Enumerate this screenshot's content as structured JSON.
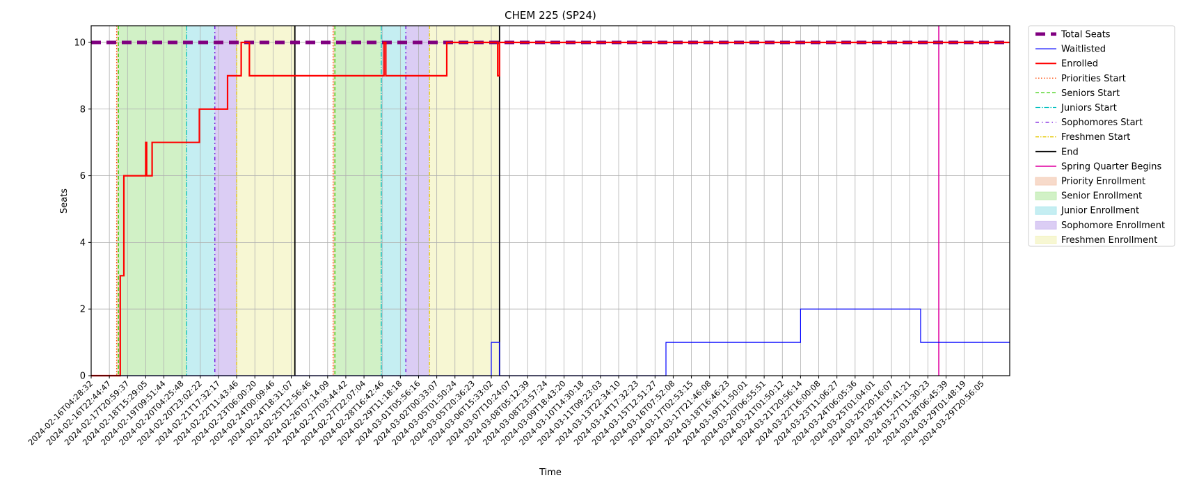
{
  "chart_data": {
    "type": "line",
    "title": "CHEM 225 (SP24)",
    "xlabel": "Time",
    "ylabel": "Seats",
    "ylim": [
      0,
      10.5
    ],
    "yticks": [
      0,
      2,
      4,
      6,
      8,
      10
    ],
    "grid": true,
    "legend_position": "outside-right",
    "xlim": [
      "2024-02-16T04:28:32",
      "2024-03-31T00:00:00"
    ],
    "xtick_labels": [
      "2024-02-16T04:28:32",
      "2024-02-16T22:44:47",
      "2024-02-17T20:59:37",
      "2024-02-18T15:29:05",
      "2024-02-19T09:51:44",
      "2024-02-20T04:25:48",
      "2024-02-20T23:02:22",
      "2024-02-21T17:32:17",
      "2024-02-22T11:43:46",
      "2024-02-23T06:00:20",
      "2024-02-24T00:09:46",
      "2024-02-24T18:31:07",
      "2024-02-25T12:56:46",
      "2024-02-26T07:14:09",
      "2024-02-27T03:44:42",
      "2024-02-27T22:07:04",
      "2024-02-28T16:42:46",
      "2024-02-29T11:18:18",
      "2024-03-01T05:56:16",
      "2024-03-02T00:33:07",
      "2024-03-05T01:50:24",
      "2024-03-05T20:36:23",
      "2024-03-06T15:33:02",
      "2024-03-07T10:24:07",
      "2024-03-08T05:12:39",
      "2024-03-08T23:57:24",
      "2024-03-09T18:43:20",
      "2024-03-10T14:30:18",
      "2024-03-11T09:23:03",
      "2024-03-13T22:34:10",
      "2024-03-14T17:32:23",
      "2024-03-15T12:51:27",
      "2024-03-16T07:52:08",
      "2024-03-17T02:53:15",
      "2024-03-17T21:46:08",
      "2024-03-18T16:46:23",
      "2024-03-19T11:50:01",
      "2024-03-20T06:55:51",
      "2024-03-21T01:50:12",
      "2024-03-21T20:56:14",
      "2024-03-22T16:00:08",
      "2024-03-23T11:06:27",
      "2024-03-24T06:05:36",
      "2024-03-25T01:04:01",
      "2024-03-25T20:16:07",
      "2024-03-26T15:41:21",
      "2024-03-27T11:30:23",
      "2024-03-28T06:45:39",
      "2024-03-29T01:48:19",
      "2024-03-29T20:56:05"
    ],
    "shaded_periods": [
      {
        "name": "Priority Enrollment",
        "color": "#f4cdb8",
        "ranges": [
          [
            1.4,
            1.5
          ],
          [
            13.3,
            13.4
          ]
        ]
      },
      {
        "name": "Senior Enrollment",
        "color": "#c1ecb3",
        "ranges": [
          [
            1.5,
            5.25
          ],
          [
            13.4,
            15.95
          ]
        ]
      },
      {
        "name": "Junior Enrollment",
        "color": "#b1e8ee",
        "ranges": [
          [
            5.25,
            6.8
          ],
          [
            15.95,
            17.3
          ]
        ]
      },
      {
        "name": "Sophomore Enrollment",
        "color": "#cfbcf0",
        "ranges": [
          [
            6.8,
            8.0
          ],
          [
            17.3,
            18.6
          ]
        ]
      },
      {
        "name": "Freshmen Enrollment",
        "color": "#f4f4c4",
        "ranges": [
          [
            8.0,
            11.2
          ],
          [
            18.6,
            22.4
          ]
        ]
      }
    ],
    "vertical_markers": [
      {
        "name": "Priorities Start",
        "color": "#ff4500",
        "dash": "1.5,2.5",
        "width": 1.3,
        "at": [
          1.4,
          13.3
        ]
      },
      {
        "name": "Seniors Start",
        "color": "#33cc00",
        "dash": "5,3",
        "width": 1.3,
        "at": [
          1.5,
          13.4
        ]
      },
      {
        "name": "Juniors Start",
        "color": "#00bfbf",
        "dash": "7,2,1.5,2",
        "width": 1.3,
        "at": [
          5.25,
          15.95
        ]
      },
      {
        "name": "Sophomores Start",
        "color": "#6a00d9",
        "dash": "5,4,1.5,4",
        "width": 1.3,
        "at": [
          6.8,
          17.3
        ]
      },
      {
        "name": "Freshmen Start",
        "color": "#e6c800",
        "dash": "5,2,1.5,2",
        "width": 1.3,
        "at": [
          8.0,
          18.6
        ]
      },
      {
        "name": "End",
        "color": "#000000",
        "dash": "",
        "width": 1.8,
        "at": [
          11.2,
          22.45
        ]
      },
      {
        "name": "Spring Quarter Begins",
        "color": "#e000a0",
        "dash": "",
        "width": 1.6,
        "at": [
          46.6
        ]
      }
    ],
    "series": [
      {
        "name": "Total Seats",
        "color": "#800080",
        "width": 5,
        "dash": "14,8",
        "points": [
          [
            0,
            10
          ],
          [
            50.5,
            10
          ]
        ]
      },
      {
        "name": "Waitlisted",
        "color": "#0000ff",
        "width": 1.2,
        "dash": "",
        "points": [
          [
            0,
            0
          ],
          [
            22.0,
            0
          ],
          [
            22.0,
            1
          ],
          [
            22.45,
            1
          ],
          [
            22.45,
            0
          ],
          [
            31.6,
            0
          ],
          [
            31.6,
            1
          ],
          [
            39.0,
            1
          ],
          [
            39.0,
            2
          ],
          [
            45.6,
            2
          ],
          [
            45.6,
            1
          ],
          [
            50.5,
            1
          ]
        ]
      },
      {
        "name": "Enrolled",
        "color": "#ff0000",
        "width": 2.2,
        "dash": "",
        "points": [
          [
            0,
            0
          ],
          [
            1.6,
            0
          ],
          [
            1.6,
            3
          ],
          [
            1.8,
            3
          ],
          [
            1.8,
            6
          ],
          [
            3.0,
            6
          ],
          [
            3.0,
            7
          ],
          [
            3.05,
            7
          ],
          [
            3.05,
            6
          ],
          [
            3.35,
            6
          ],
          [
            3.35,
            7
          ],
          [
            5.95,
            7
          ],
          [
            5.95,
            8
          ],
          [
            7.5,
            8
          ],
          [
            7.5,
            9
          ],
          [
            8.25,
            9
          ],
          [
            8.25,
            10
          ],
          [
            8.7,
            10
          ],
          [
            8.7,
            9
          ],
          [
            16.1,
            9
          ],
          [
            16.1,
            10
          ],
          [
            16.2,
            10
          ],
          [
            16.2,
            9
          ],
          [
            19.55,
            9
          ],
          [
            19.55,
            10
          ],
          [
            22.35,
            10
          ],
          [
            22.35,
            9
          ],
          [
            22.45,
            9
          ],
          [
            22.45,
            10
          ],
          [
            50.5,
            10
          ]
        ]
      }
    ]
  }
}
